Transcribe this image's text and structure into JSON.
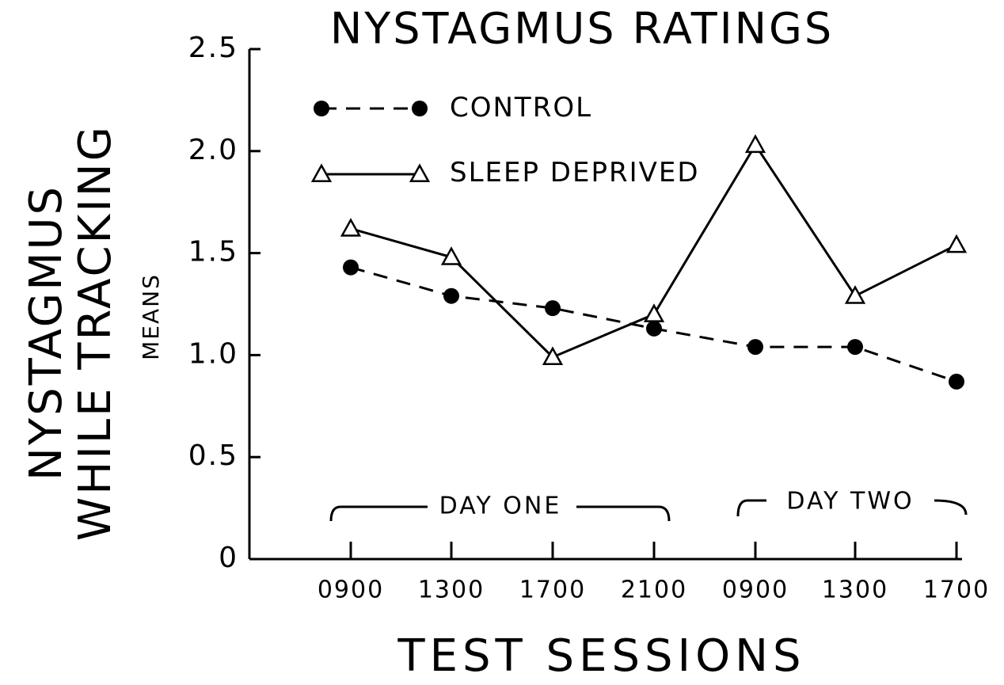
{
  "chart_data": {
    "type": "line",
    "title": "NYSTAGMUS RATINGS",
    "ylabel": [
      "NYSTAGMUS",
      "WHILE TRACKING"
    ],
    "ylabel_units": "MEANS",
    "xlabel": "TEST SESSIONS",
    "annotations": [
      "DAY ONE",
      "DAY TWO"
    ],
    "categories": [
      "0900",
      "1300",
      "1700",
      "2100",
      "0900",
      "1300",
      "1700"
    ],
    "series": [
      {
        "name": "CONTROL",
        "color": "#000000",
        "dash": true,
        "marker": "filled-circle",
        "values": [
          1.43,
          1.29,
          1.23,
          1.13,
          1.04,
          1.04,
          0.87
        ]
      },
      {
        "name": "SLEEP DEPRIVED",
        "color": "#000000",
        "dash": false,
        "marker": "open-triangle",
        "values": [
          1.62,
          1.48,
          0.99,
          1.2,
          2.03,
          1.29,
          1.54
        ]
      }
    ],
    "ylim": [
      0,
      2.5
    ],
    "yticks": [
      0,
      0.5,
      {
        "value": 1,
        "label": "1.0"
      },
      1.5,
      {
        "value": 2,
        "label": "2.0"
      },
      2.5
    ],
    "grid": false,
    "legend": "upper left"
  }
}
